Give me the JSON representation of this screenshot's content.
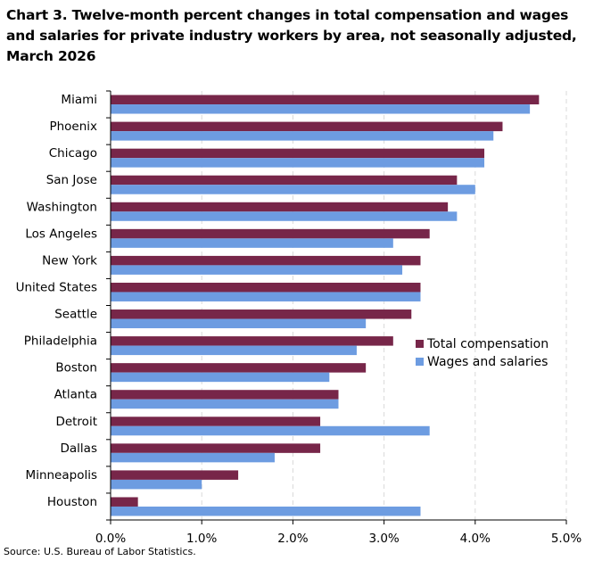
{
  "title": "Chart 3. Twelve-month percent changes in total compensation and wages and salaries for private industry workers by area, not seasonally adjusted, March 2026",
  "source": "Source: U.S. Bureau of Labor Statistics.",
  "chart_data": {
    "type": "bar",
    "orientation": "horizontal",
    "title": "Chart 3. Twelve-month percent changes in total compensation and wages and salaries for private industry workers by area, not seasonally adjusted, March 2026",
    "xlabel": "",
    "ylabel": "",
    "xlim": [
      0,
      5
    ],
    "x_ticks": [
      "0.0%",
      "1.0%",
      "2.0%",
      "3.0%",
      "4.0%",
      "5.0%"
    ],
    "grid": "vertical dashed",
    "legend_position": "right-middle",
    "categories": [
      "Miami",
      "Phoenix",
      "Chicago",
      "San Jose",
      "Washington",
      "Los Angeles",
      "New York",
      "United States",
      "Seattle",
      "Philadelphia",
      "Boston",
      "Atlanta",
      "Detroit",
      "Dallas",
      "Minneapolis",
      "Houston"
    ],
    "series": [
      {
        "name": "Total compensation",
        "color": "#772649",
        "values": [
          4.7,
          4.3,
          4.1,
          3.8,
          3.7,
          3.5,
          3.4,
          3.4,
          3.3,
          3.1,
          2.8,
          2.5,
          2.3,
          2.3,
          1.4,
          0.3
        ]
      },
      {
        "name": "Wages and salaries",
        "color": "#6D9CE1",
        "values": [
          4.6,
          4.2,
          4.1,
          4.0,
          3.8,
          3.1,
          3.2,
          3.4,
          2.8,
          2.7,
          2.4,
          2.5,
          3.5,
          1.8,
          1.0,
          3.4
        ]
      }
    ]
  }
}
